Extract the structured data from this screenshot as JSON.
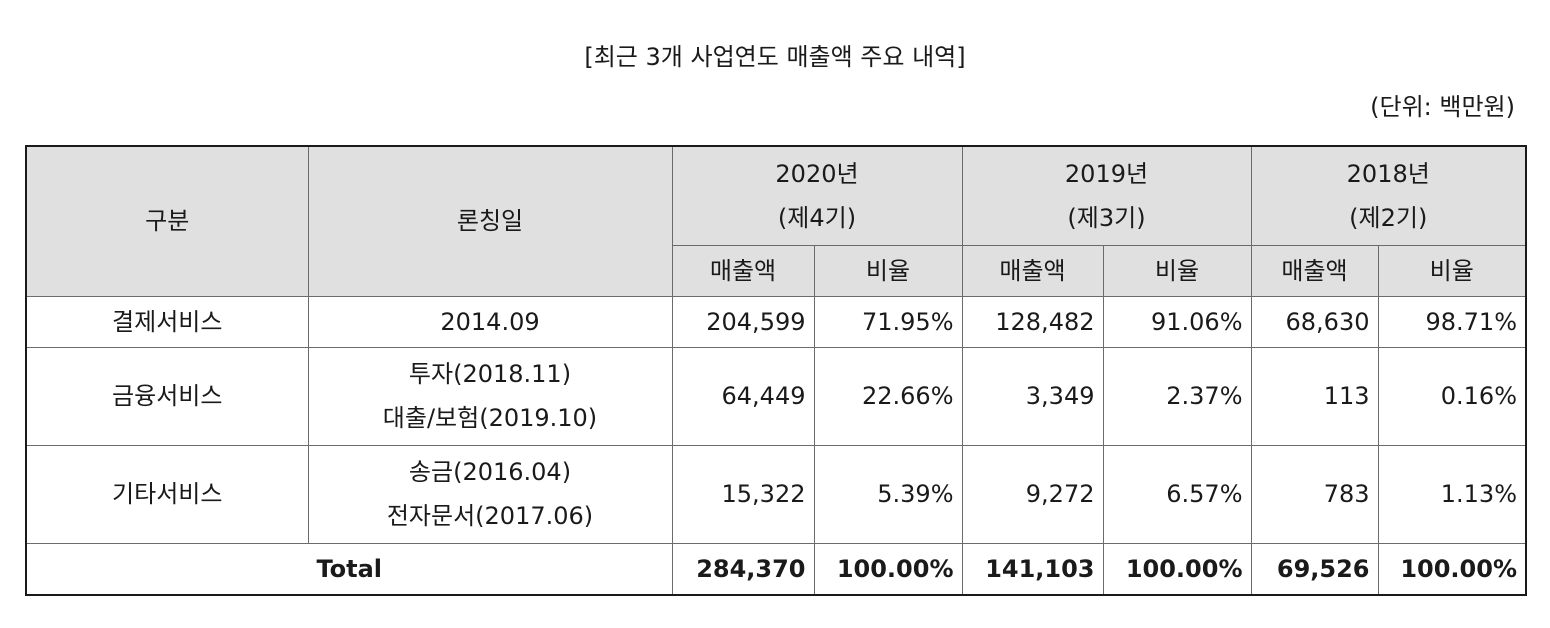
{
  "title": "[최근 3개 사업연도 매출액 주요 내역]",
  "unit": "(단위: 백만원)",
  "header": {
    "category": "구분",
    "launch": "론칭일",
    "years": [
      {
        "year": "2020년",
        "period": "(제4기)"
      },
      {
        "year": "2019년",
        "period": "(제3기)"
      },
      {
        "year": "2018년",
        "period": "(제2기)"
      }
    ],
    "sub": {
      "sales": "매출액",
      "ratio": "비율"
    }
  },
  "rows": [
    {
      "category": "결제서비스",
      "launch": [
        "2014.09"
      ],
      "cells": [
        [
          "204,599",
          "71.95%"
        ],
        [
          "128,482",
          "91.06%"
        ],
        [
          "68,630",
          "98.71%"
        ]
      ]
    },
    {
      "category": "금융서비스",
      "launch": [
        "투자(2018.11)",
        "대출/보험(2019.10)"
      ],
      "cells": [
        [
          "64,449",
          "22.66%"
        ],
        [
          "3,349",
          "2.37%"
        ],
        [
          "113",
          "0.16%"
        ]
      ]
    },
    {
      "category": "기타서비스",
      "launch": [
        "송금(2016.04)",
        "전자문서(2017.06)"
      ],
      "cells": [
        [
          "15,322",
          "5.39%"
        ],
        [
          "9,272",
          "6.57%"
        ],
        [
          "783",
          "1.13%"
        ]
      ]
    }
  ],
  "total": {
    "label": "Total",
    "cells": [
      [
        "284,370",
        "100.00%"
      ],
      [
        "141,103",
        "100.00%"
      ],
      [
        "69,526",
        "100.00%"
      ]
    ]
  }
}
